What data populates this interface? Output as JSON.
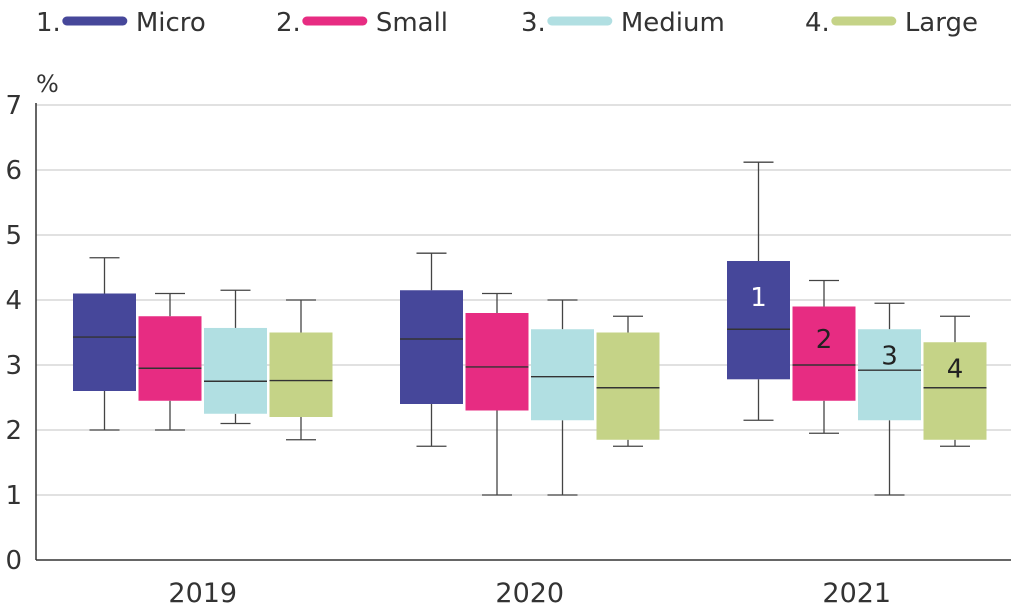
{
  "chart_data": {
    "type": "box",
    "ylabel": "%",
    "ylim": [
      0,
      7
    ],
    "yticks": [
      "0",
      "1",
      "2",
      "3",
      "4",
      "5",
      "6",
      "7"
    ],
    "grid": true,
    "legend_position": "top",
    "categories": [
      "2019",
      "2020",
      "2021"
    ],
    "series": [
      {
        "name": "Micro",
        "legend_label": "1.",
        "color": "#46479a",
        "boxes": [
          {
            "min": 2.0,
            "q1": 2.6,
            "median": 3.43,
            "q3": 4.1,
            "max": 4.65
          },
          {
            "min": 1.75,
            "q1": 2.4,
            "median": 3.4,
            "q3": 4.15,
            "max": 4.72
          },
          {
            "min": 2.15,
            "q1": 2.78,
            "median": 3.55,
            "q3": 4.6,
            "max": 6.12
          }
        ]
      },
      {
        "name": "Small",
        "legend_label": "2.",
        "color": "#e72c82",
        "boxes": [
          {
            "min": 2.0,
            "q1": 2.45,
            "median": 2.95,
            "q3": 3.75,
            "max": 4.1
          },
          {
            "min": 1.0,
            "q1": 2.3,
            "median": 2.97,
            "q3": 3.8,
            "max": 4.1
          },
          {
            "min": 1.95,
            "q1": 2.45,
            "median": 3.0,
            "q3": 3.9,
            "max": 4.3
          }
        ]
      },
      {
        "name": "Medium",
        "legend_label": "3.",
        "color": "#b1dfe2",
        "boxes": [
          {
            "min": 2.1,
            "q1": 2.25,
            "median": 2.75,
            "q3": 3.57,
            "max": 4.15
          },
          {
            "min": 1.0,
            "q1": 2.15,
            "median": 2.82,
            "q3": 3.55,
            "max": 4.0
          },
          {
            "min": 1.0,
            "q1": 2.15,
            "median": 2.92,
            "q3": 3.55,
            "max": 3.95
          }
        ]
      },
      {
        "name": "Large",
        "legend_label": "4.",
        "color": "#c5d387",
        "boxes": [
          {
            "min": 1.85,
            "q1": 2.2,
            "median": 2.76,
            "q3": 3.5,
            "max": 4.0
          },
          {
            "min": 1.75,
            "q1": 1.85,
            "median": 2.65,
            "q3": 3.5,
            "max": 3.75
          },
          {
            "min": 1.75,
            "q1": 1.85,
            "median": 2.65,
            "q3": 3.35,
            "max": 3.75
          }
        ]
      }
    ],
    "annotations": [
      {
        "category": "2021",
        "series": 0,
        "text": "1",
        "y": 4.05,
        "color": "#ffffff"
      },
      {
        "category": "2021",
        "series": 1,
        "text": "2",
        "y": 3.4,
        "color": "#222222"
      },
      {
        "category": "2021",
        "series": 2,
        "text": "3",
        "y": 3.15,
        "color": "#222222"
      },
      {
        "category": "2021",
        "series": 3,
        "text": "4",
        "y": 2.95,
        "color": "#222222"
      }
    ]
  }
}
